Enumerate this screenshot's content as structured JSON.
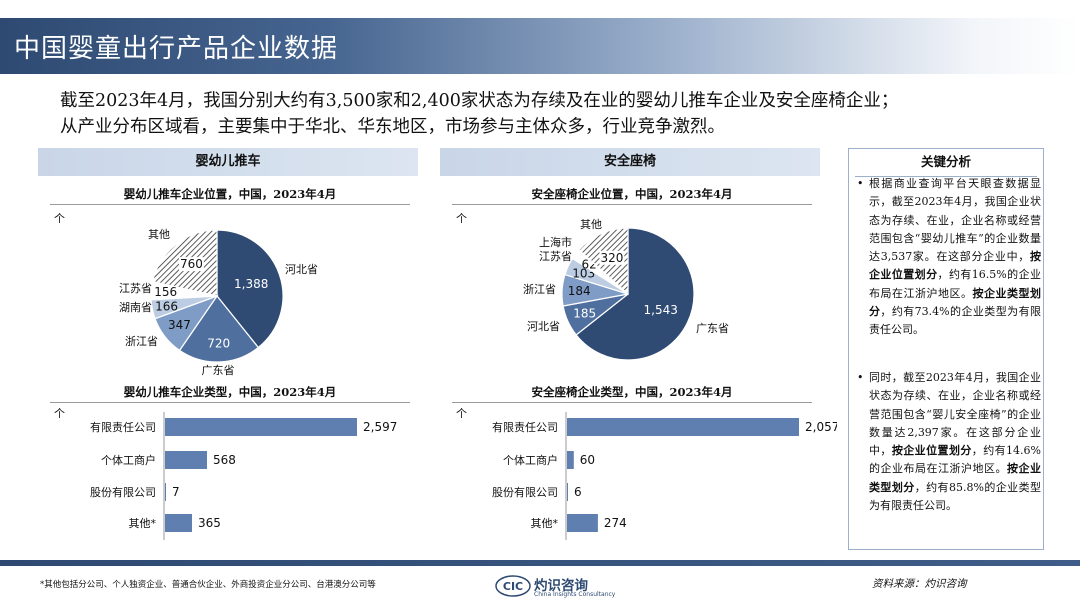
{
  "page": {
    "title": "中国婴童出行产品企业数据",
    "intro": [
      "截至2023年4月，我国分别大约有3,500家和2,400家状态为存续及在业的婴幼儿推车企业及安全座椅企业；",
      "从产业分布区域看，主要集中于华北、华东地区，市场参与主体众多，行业竞争激烈。"
    ],
    "footnote": "*其他包括分公司、个人独资企业、普通合伙企业、外商投资企业分公司、台港澳分公司等",
    "source": "资料来源：灼识咨询",
    "logo": {
      "mark": "CIC",
      "name": "灼识咨询",
      "sub": "China Insights Consultancy"
    }
  },
  "sections": {
    "stroller": {
      "banner": "婴幼儿推车"
    },
    "seat": {
      "banner": "安全座椅"
    }
  },
  "key_analysis": {
    "heading": "关键分析",
    "bullets": [
      {
        "parts": [
          {
            "text": "根据商业查询平台天眼查数据显示，截至2023年4月，我国企业状态为存续、在业，企业名称或经营范围包含“婴幼儿推车”的企业数量达3,537家。在这部分企业中，",
            "bold": false
          },
          {
            "text": "按企业位置划分",
            "bold": true
          },
          {
            "text": "，约有16.5%的企业布局在江浙沪地区。",
            "bold": false
          },
          {
            "text": "按企业类型划分",
            "bold": true
          },
          {
            "text": "，约有73.4%的企业类型为有限责任公司。",
            "bold": false
          }
        ]
      },
      {
        "parts": [
          {
            "text": "同时，截至2023年4月，我国企业状态为存续、在业，企业名称或经营范围包含“婴儿安全座椅”的企业数量达2,397家。在这部分企业中，",
            "bold": false
          },
          {
            "text": "按企业位置划分",
            "bold": true
          },
          {
            "text": "，约有14.6%的企业布局在江浙沪地区。",
            "bold": false
          },
          {
            "text": "按企业类型划分",
            "bold": true
          },
          {
            "text": "，约有85.8%的企业类型为有限责任公司。",
            "bold": false
          }
        ]
      }
    ]
  },
  "colors": {
    "navy": "#2f4b74",
    "mid_blue": "#4f6f9f",
    "light_blue": "#7f9cc6",
    "pale_blue": "#bccde3",
    "white": "#ffffff",
    "bar": "#5e7fb0"
  },
  "chart_data": [
    {
      "id": "stroller_location",
      "type": "pie",
      "title": "婴幼儿推车企业位置，中国，2023年4月",
      "unit": "个",
      "slices": [
        {
          "label": "河北省",
          "value": 1388,
          "value_label": "1,388",
          "color": "#2f4b74"
        },
        {
          "label": "广东省",
          "value": 720,
          "value_label": "720",
          "color": "#4f6f9f"
        },
        {
          "label": "浙江省",
          "value": 347,
          "value_label": "347",
          "color": "#7f9cc6"
        },
        {
          "label": "湖南省",
          "value": 166,
          "value_label": "166",
          "color": "#bccde3"
        },
        {
          "label": "江苏省",
          "value": 156,
          "value_label": "156",
          "color": "#ffffff"
        },
        {
          "label": "其他",
          "value": 760,
          "value_label": "760",
          "color": "hatch"
        }
      ]
    },
    {
      "id": "stroller_type",
      "type": "bar",
      "title": "婴幼儿推车企业类型，中国，2023年4月",
      "unit": "个",
      "categories": [
        "有限责任公司",
        "个体工商户",
        "股份有限公司",
        "其他*"
      ],
      "values": [
        2597,
        568,
        7,
        365
      ],
      "value_labels": [
        "2,597",
        "568",
        "7",
        "365"
      ]
    },
    {
      "id": "seat_location",
      "type": "pie",
      "title": "安全座椅企业位置，中国，2023年4月",
      "unit": "个",
      "slices": [
        {
          "label": "广东省",
          "value": 1543,
          "value_label": "1,543",
          "color": "#2f4b74"
        },
        {
          "label": "河北省",
          "value": 185,
          "value_label": "185",
          "color": "#4f6f9f"
        },
        {
          "label": "浙江省",
          "value": 184,
          "value_label": "184",
          "color": "#7f9cc6"
        },
        {
          "label": "江苏省",
          "value": 103,
          "value_label": "103",
          "color": "#bccde3"
        },
        {
          "label": "上海市",
          "value": 62,
          "value_label": "62",
          "color": "#ffffff"
        },
        {
          "label": "其他",
          "value": 320,
          "value_label": "320",
          "color": "hatch"
        }
      ]
    },
    {
      "id": "seat_type",
      "type": "bar",
      "title": "安全座椅企业类型，中国，2023年4月",
      "unit": "个",
      "categories": [
        "有限责任公司",
        "个体工商户",
        "股份有限公司",
        "其他*"
      ],
      "values": [
        2057,
        60,
        6,
        274
      ],
      "value_labels": [
        "2,057",
        "60",
        "6",
        "274"
      ]
    }
  ]
}
